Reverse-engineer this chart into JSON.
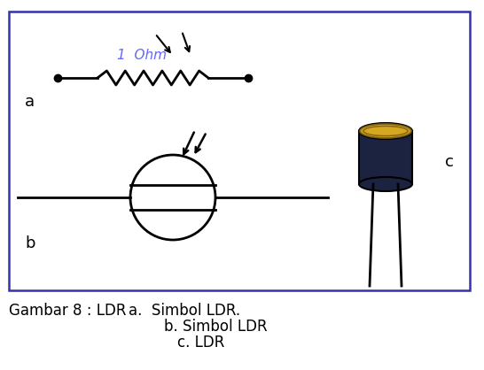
{
  "title": "Gambar 8 : LDR",
  "caption_a": "a.  Simbol LDR.",
  "caption_b": "b. Simbol LDR",
  "caption_c": "c. LDR",
  "label_a": "a",
  "label_b": "b",
  "label_c": "c",
  "resistor_label": "1  Ohm",
  "resistor_color": "#6666ff",
  "border_color": "#3333aa",
  "background_color": "#ffffff",
  "text_color": "#000000"
}
